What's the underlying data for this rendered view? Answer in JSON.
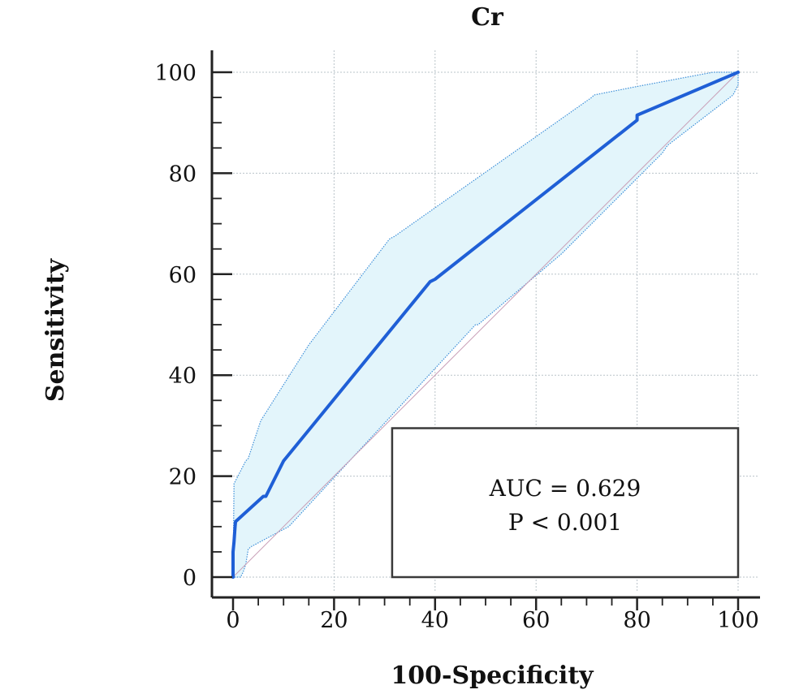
{
  "chart_data": {
    "type": "line",
    "title": "Cr",
    "xlabel": "100-Specificity",
    "ylabel": "Sensitivity",
    "xlim": [
      0,
      100
    ],
    "ylim": [
      0,
      100
    ],
    "x_ticks": [
      0,
      20,
      40,
      60,
      80,
      100
    ],
    "y_ticks": [
      0,
      20,
      40,
      60,
      80,
      100
    ],
    "grid": true,
    "colors": {
      "roc_curve": "#1f5fd6",
      "ci_band_fill": "#e3f5fb",
      "ci_band_edge": "#3d8fd8",
      "reference_line": "#c9a0b8"
    },
    "series": [
      {
        "role": "roc_curve",
        "x": [
          0,
          0,
          0.2,
          0.4,
          0.5,
          6,
          6.5,
          10,
          39,
          40,
          80,
          80,
          100
        ],
        "y": [
          0,
          5,
          7,
          10,
          11,
          16,
          16,
          23,
          58.5,
          59,
          90.5,
          91.5,
          100
        ]
      },
      {
        "role": "ci_upper",
        "x": [
          0,
          0.2,
          2.5,
          3,
          5.5,
          15,
          31,
          32,
          71,
          71.5,
          79,
          95,
          100
        ],
        "y": [
          0,
          18.5,
          23,
          23.5,
          31,
          46,
          67,
          67.5,
          95,
          95.5,
          97,
          100,
          100
        ]
      },
      {
        "role": "ci_lower",
        "x": [
          0,
          1.5,
          2,
          2.5,
          3,
          3.5,
          11,
          11.5,
          48,
          48.5,
          65,
          85,
          86,
          99,
          100,
          100
        ],
        "y": [
          0,
          0,
          1,
          2.5,
          5.5,
          6,
          10,
          10.5,
          50,
          50,
          64,
          84,
          85.5,
          95.5,
          97.5,
          100
        ]
      },
      {
        "role": "reference",
        "x": [
          0,
          100
        ],
        "y": [
          0,
          100
        ]
      }
    ],
    "annotations": {
      "auc_text": "AUC = 0.629",
      "p_text": "P < 0.001",
      "box_x_range": [
        31.5,
        100
      ],
      "box_y_range": [
        0,
        29.5
      ]
    }
  }
}
